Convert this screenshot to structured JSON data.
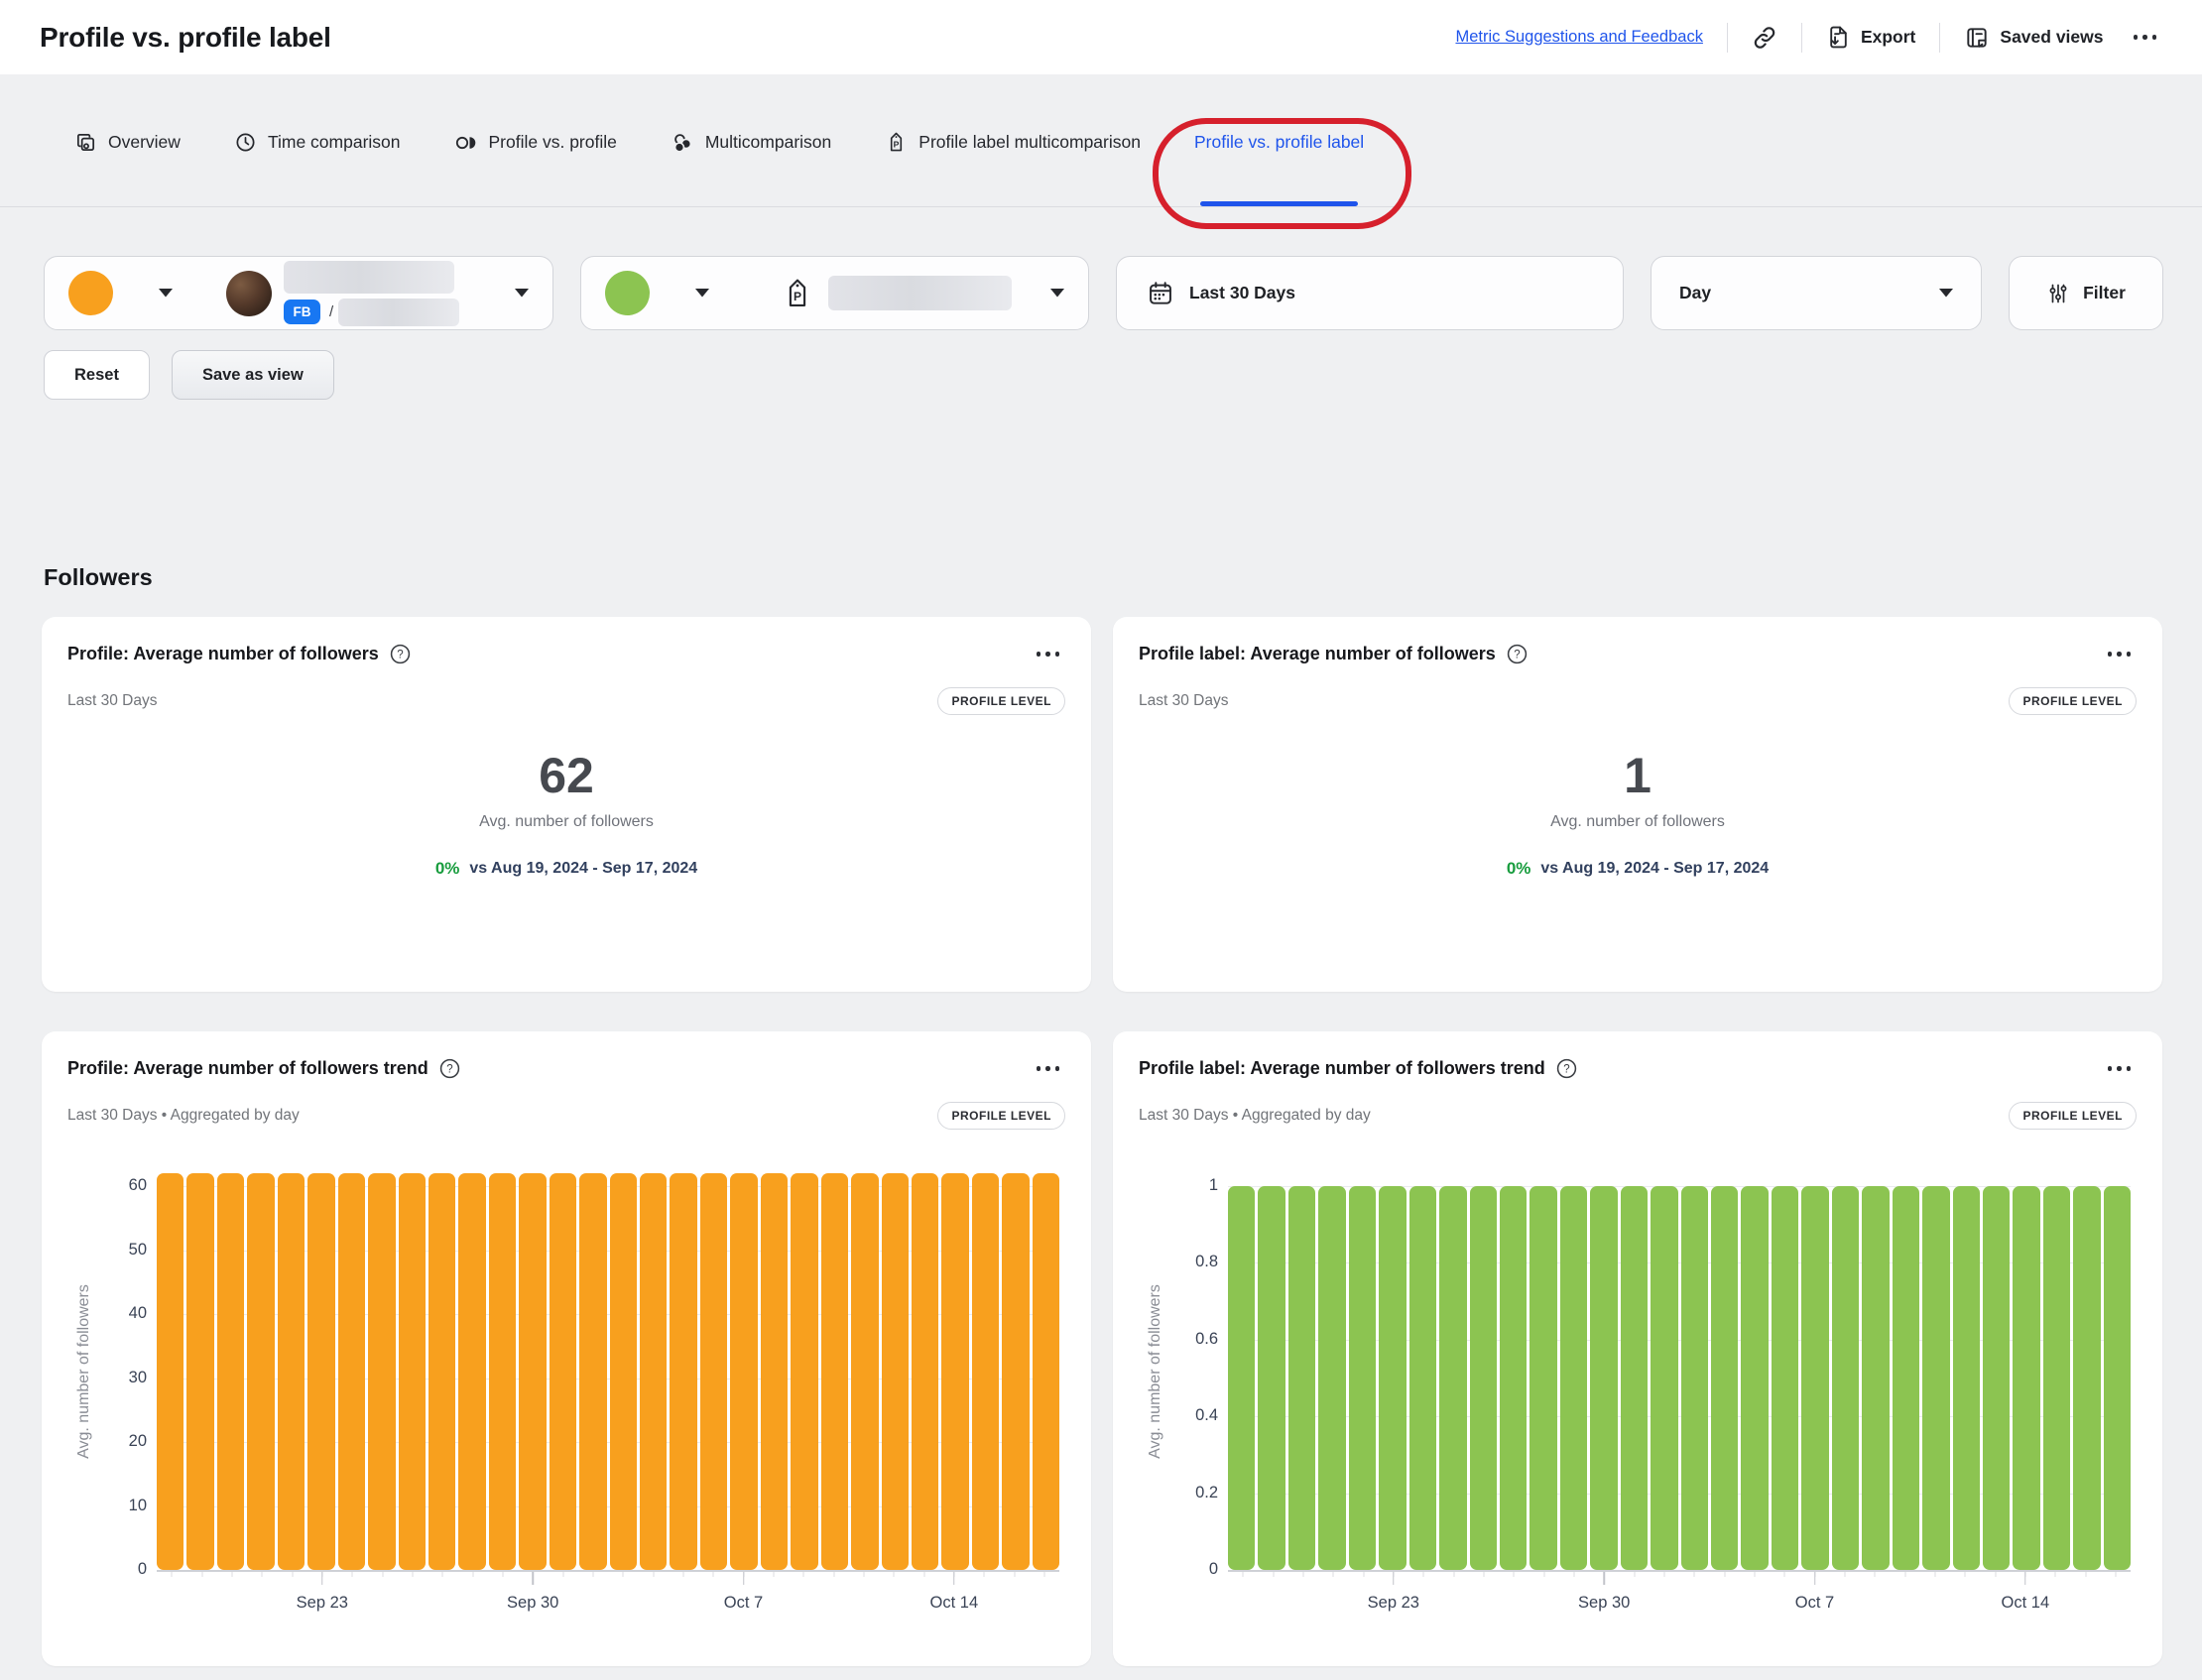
{
  "header": {
    "title": "Profile vs. profile label",
    "feedback_link": "Metric Suggestions and Feedback",
    "export_label": "Export",
    "saved_views_label": "Saved views"
  },
  "tabs": [
    {
      "label": "Overview"
    },
    {
      "label": "Time comparison"
    },
    {
      "label": "Profile vs. profile"
    },
    {
      "label": "Multicomparison"
    },
    {
      "label": "Profile label multicomparison"
    },
    {
      "label": "Profile vs. profile label",
      "active": true
    }
  ],
  "filters": {
    "profile_swatch_color": "#F8A01E",
    "profile_network": "FB",
    "profile_name_separator": "/",
    "label_swatch_color": "#8CC451",
    "date_range_label": "Last 30 Days",
    "granularity_label": "Day",
    "filter_button_label": "Filter",
    "reset_button_label": "Reset",
    "save_view_button_label": "Save as view"
  },
  "section_title": "Followers",
  "cards": {
    "profile_summary": {
      "title": "Profile: Average number of followers",
      "period": "Last 30 Days",
      "badge": "PROFILE LEVEL",
      "value": "62",
      "value_label": "Avg. number of followers",
      "delta": "0%",
      "delta_compare": "vs Aug 19, 2024 - Sep 17, 2024"
    },
    "label_summary": {
      "title": "Profile label: Average number of followers",
      "period": "Last 30 Days",
      "badge": "PROFILE LEVEL",
      "value": "1",
      "value_label": "Avg. number of followers",
      "delta": "0%",
      "delta_compare": "vs Aug 19, 2024 - Sep 17, 2024"
    },
    "profile_trend": {
      "title": "Profile: Average number of followers trend",
      "period": "Last 30 Days • Aggregated by day",
      "badge": "PROFILE LEVEL"
    },
    "label_trend": {
      "title": "Profile label: Average number of followers trend",
      "period": "Last 30 Days • Aggregated by day",
      "badge": "PROFILE LEVEL"
    }
  },
  "chart_data": [
    {
      "type": "bar",
      "title": "Profile: Average number of followers trend",
      "color": "#F8A01E",
      "ylabel": "Avg. number of followers",
      "ylim": [
        0,
        60
      ],
      "yticks": [
        0,
        10,
        20,
        30,
        40,
        50,
        60
      ],
      "x": [
        "Sep 18",
        "Sep 19",
        "Sep 20",
        "Sep 21",
        "Sep 22",
        "Sep 23",
        "Sep 24",
        "Sep 25",
        "Sep 26",
        "Sep 27",
        "Sep 28",
        "Sep 29",
        "Sep 30",
        "Oct 1",
        "Oct 2",
        "Oct 3",
        "Oct 4",
        "Oct 5",
        "Oct 6",
        "Oct 7",
        "Oct 8",
        "Oct 9",
        "Oct 10",
        "Oct 11",
        "Oct 12",
        "Oct 13",
        "Oct 14",
        "Oct 15",
        "Oct 16",
        "Oct 17"
      ],
      "values": [
        62,
        62,
        62,
        62,
        62,
        62,
        62,
        62,
        62,
        62,
        62,
        62,
        62,
        62,
        62,
        62,
        62,
        62,
        62,
        62,
        62,
        62,
        62,
        62,
        62,
        62,
        62,
        62,
        62,
        62
      ],
      "xticks": [
        "Sep 23",
        "Sep 30",
        "Oct 7",
        "Oct 14"
      ],
      "grid": true,
      "legend": "none"
    },
    {
      "type": "bar",
      "title": "Profile label: Average number of followers trend",
      "color": "#8CC451",
      "ylabel": "Avg. number of followers",
      "ylim": [
        0,
        1
      ],
      "yticks": [
        0,
        0.2,
        0.4,
        0.6,
        0.8,
        1
      ],
      "x": [
        "Sep 18",
        "Sep 19",
        "Sep 20",
        "Sep 21",
        "Sep 22",
        "Sep 23",
        "Sep 24",
        "Sep 25",
        "Sep 26",
        "Sep 27",
        "Sep 28",
        "Sep 29",
        "Sep 30",
        "Oct 1",
        "Oct 2",
        "Oct 3",
        "Oct 4",
        "Oct 5",
        "Oct 6",
        "Oct 7",
        "Oct 8",
        "Oct 9",
        "Oct 10",
        "Oct 11",
        "Oct 12",
        "Oct 13",
        "Oct 14",
        "Oct 15",
        "Oct 16",
        "Oct 17"
      ],
      "values": [
        1,
        1,
        1,
        1,
        1,
        1,
        1,
        1,
        1,
        1,
        1,
        1,
        1,
        1,
        1,
        1,
        1,
        1,
        1,
        1,
        1,
        1,
        1,
        1,
        1,
        1,
        1,
        1,
        1,
        1
      ],
      "xticks": [
        "Sep 23",
        "Sep 30",
        "Oct 7",
        "Oct 14"
      ],
      "grid": true,
      "legend": "none"
    }
  ]
}
